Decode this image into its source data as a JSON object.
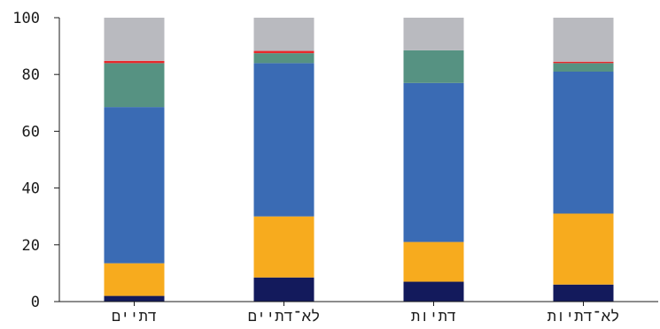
{
  "chart_data": {
    "type": "bar",
    "stacked": true,
    "categories": [
      "דתיים",
      "לא־דתיים",
      "דתיות",
      "לא־דתיות"
    ],
    "series": [
      {
        "color": "#131a5c",
        "values": [
          2,
          8.5,
          7,
          6
        ]
      },
      {
        "color": "#f7ab1e",
        "values": [
          11.5,
          21.5,
          14,
          25
        ]
      },
      {
        "color": "#3a6bb4",
        "values": [
          55,
          54,
          56,
          50
        ]
      },
      {
        "color": "#569282",
        "values": [
          15.5,
          3.5,
          11.5,
          3
        ]
      },
      {
        "color": "#e8282b",
        "values": [
          0.8,
          0.8,
          0,
          0.5
        ]
      },
      {
        "color": "#b9babf",
        "values": [
          15.2,
          11.7,
          11.5,
          15.5
        ]
      }
    ],
    "yticks": [
      0,
      20,
      40,
      60,
      80,
      100
    ],
    "ylim": [
      0,
      100
    ],
    "grid": false,
    "legend": "none"
  }
}
